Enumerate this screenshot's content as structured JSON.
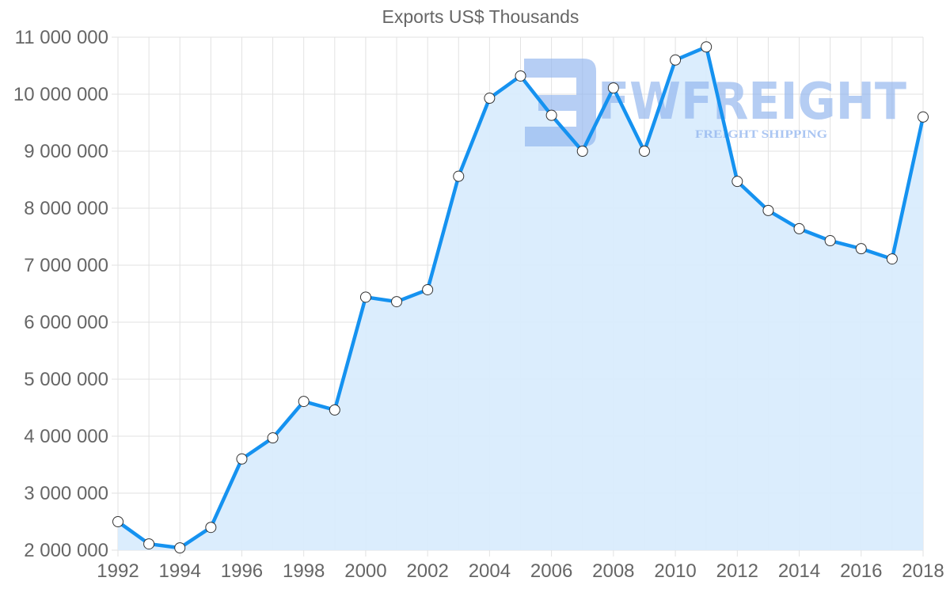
{
  "chart_data": {
    "type": "area",
    "title": "Exports US$ Thousands",
    "xlabel": "",
    "ylabel": "",
    "x": [
      1992,
      1993,
      1994,
      1995,
      1996,
      1997,
      1998,
      1999,
      2000,
      2001,
      2002,
      2003,
      2004,
      2005,
      2006,
      2007,
      2008,
      2009,
      2010,
      2011,
      2012,
      2013,
      2014,
      2015,
      2016,
      2017,
      2018
    ],
    "series": [
      {
        "name": "Exports US$ Thousands",
        "values": [
          2500000,
          2110000,
          2040000,
          2400000,
          3600000,
          3970000,
          4610000,
          4460000,
          6440000,
          6360000,
          6570000,
          8560000,
          9930000,
          10320000,
          9630000,
          9000000,
          10110000,
          9000000,
          10600000,
          10830000,
          8470000,
          7960000,
          7640000,
          7430000,
          7290000,
          7110000,
          9600000
        ]
      }
    ],
    "ylim": [
      2000000,
      11000000
    ],
    "xlim": [
      1992,
      2018
    ],
    "y_ticks": [
      "2 000 000",
      "3 000 000",
      "4 000 000",
      "5 000 000",
      "6 000 000",
      "7 000 000",
      "8 000 000",
      "9 000 000",
      "10 000 000",
      "11 000 000"
    ],
    "y_tick_values": [
      2000000,
      3000000,
      4000000,
      5000000,
      6000000,
      7000000,
      8000000,
      9000000,
      10000000,
      11000000
    ],
    "x_ticks": [
      "1992",
      "1994",
      "1996",
      "1998",
      "2000",
      "2002",
      "2004",
      "2006",
      "2008",
      "2010",
      "2012",
      "2014",
      "2016",
      "2018"
    ],
    "grid": true,
    "legend": "none",
    "colors": {
      "line": "#1592f0",
      "fill": "#d9ecfd",
      "grid": "#e2e2e2",
      "marker_fill": "#ffffff",
      "marker_stroke": "#333333",
      "text": "#666666"
    },
    "watermark": {
      "brand": "FWFREIGHT",
      "tagline": "FREIGHT SHIPPING",
      "color": "#8fb3ee"
    }
  }
}
